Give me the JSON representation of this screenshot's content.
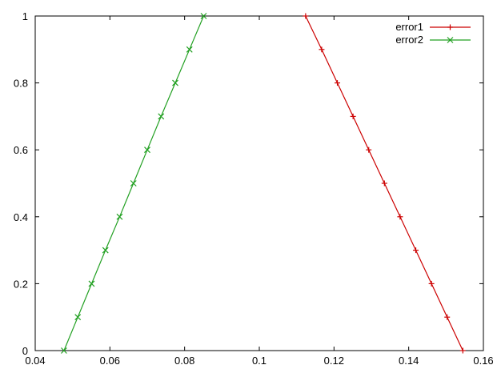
{
  "chart_data": {
    "type": "line",
    "title": "",
    "xlabel": "",
    "ylabel": "",
    "xlim": [
      0.04,
      0.16
    ],
    "ylim": [
      0,
      1
    ],
    "x_ticks": [
      0.04,
      0.06,
      0.08,
      0.1,
      0.12,
      0.14,
      0.16
    ],
    "x_tick_labels": [
      "0.04",
      "0.06",
      "0.08",
      "0.1",
      "0.12",
      "0.14",
      "0.16"
    ],
    "y_ticks": [
      0,
      0.2,
      0.4,
      0.6,
      0.8,
      1
    ],
    "y_tick_labels": [
      "0",
      "0.2",
      "0.4",
      "0.6",
      "0.8",
      "1"
    ],
    "grid": false,
    "legend_position": "top-right",
    "series": [
      {
        "name": "error1",
        "color": "#cc0000",
        "marker": "plus",
        "x": [
          0.1545,
          0.1503,
          0.1461,
          0.1419,
          0.1377,
          0.1335,
          0.1293,
          0.1251,
          0.1209,
          0.1167,
          0.1124
        ],
        "y": [
          0,
          0.1,
          0.2,
          0.3,
          0.4,
          0.5,
          0.6,
          0.7,
          0.8,
          0.9,
          1
        ]
      },
      {
        "name": "error2",
        "color": "#22a022",
        "marker": "cross",
        "x": [
          0.0477,
          0.0514,
          0.0551,
          0.0588,
          0.0626,
          0.0663,
          0.07,
          0.0737,
          0.0775,
          0.0813,
          0.0851
        ],
        "y": [
          0,
          0.1,
          0.2,
          0.3,
          0.4,
          0.5,
          0.6,
          0.7,
          0.8,
          0.9,
          1
        ]
      }
    ]
  }
}
